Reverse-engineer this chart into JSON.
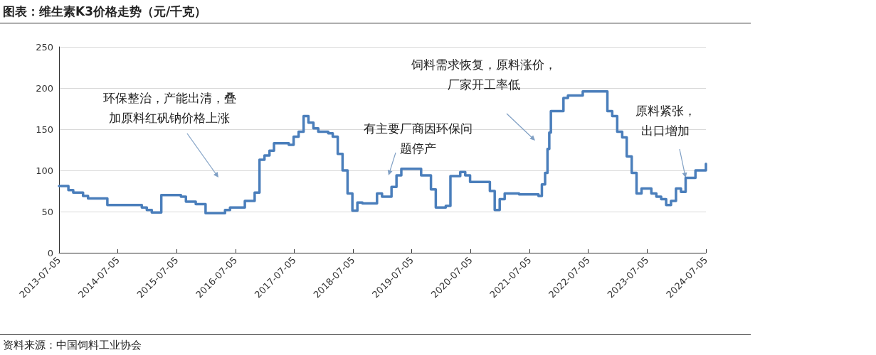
{
  "chart_data": {
    "type": "step",
    "title": "图表：维生素K3价格走势（元/千克）",
    "x": [
      "2013-07-05",
      "2013-09",
      "2013-10",
      "2013-12",
      "2014-01",
      "2014-05",
      "2014-12",
      "2015-01",
      "2015-02",
      "2015-04",
      "2015-08",
      "2015-09",
      "2015-11",
      "2016-01",
      "2016-05",
      "2016-06",
      "2016-09",
      "2016-11",
      "2016-12",
      "2017-01",
      "2017-02",
      "2017-03",
      "2017-06",
      "2017-07",
      "2017-08",
      "2017-09",
      "2017-10",
      "2017-11",
      "2017-12",
      "2018-02",
      "2018-03",
      "2018-04",
      "2018-05",
      "2018-06",
      "2018-07",
      "2018-08",
      "2018-09",
      "2018-11",
      "2018-12",
      "2019-01",
      "2019-03",
      "2019-04",
      "2019-05",
      "2019-08",
      "2019-09",
      "2019-11",
      "2019-12",
      "2020-02",
      "2020-03",
      "2020-05",
      "2020-06",
      "2020-07",
      "2020-10",
      "2020-11",
      "2020-12",
      "2021-01",
      "2021-02",
      "2021-05",
      "2021-08-30",
      "2021-09-20",
      "2021-10-10",
      "2021-10-25",
      "2021-11-05",
      "2021-11-15",
      "2022-02",
      "2022-03",
      "2022-06",
      "2022-11",
      "2022-12",
      "2023-01",
      "2023-02",
      "2023-03",
      "2023-04",
      "2023-05",
      "2023-06",
      "2023-08",
      "2023-09",
      "2023-10",
      "2023-11",
      "2023-12",
      "2024-01",
      "2024-02",
      "2024-03",
      "2024-05",
      "2024-07-05"
    ],
    "series": [
      {
        "color": "#4a7ebb",
        "values": [
          81,
          76,
          73,
          69,
          66,
          58,
          55,
          52,
          49,
          70,
          68,
          62,
          59,
          48,
          52,
          55,
          63,
          73,
          113,
          118,
          124,
          133,
          131,
          141,
          147,
          166,
          158,
          151,
          147,
          145,
          141,
          120,
          100,
          72,
          51,
          61,
          60,
          60,
          72,
          68,
          80,
          94,
          102,
          102,
          94,
          77,
          55,
          57,
          93,
          98,
          94,
          86,
          86,
          75,
          52,
          65,
          72,
          71,
          69,
          83,
          97,
          126,
          146,
          172,
          188,
          191,
          196,
          172,
          166,
          147,
          140,
          117,
          97,
          72,
          78,
          72,
          68,
          65,
          58,
          63,
          78,
          74,
          91,
          100,
          108
        ]
      }
    ],
    "xlim": [
      "2013-07-05",
      "2024-07-05"
    ],
    "xticks": [
      "2013-07-05",
      "2014-07-05",
      "2015-07-05",
      "2016-07-05",
      "2017-07-05",
      "2018-07-05",
      "2019-07-05",
      "2020-07-05",
      "2021-07-05",
      "2022-07-05",
      "2023-07-05",
      "2024-07-05"
    ],
    "ylim": [
      0,
      250
    ],
    "yticks": [
      0,
      50,
      100,
      150,
      200,
      250
    ],
    "grid": "y",
    "marker": "none",
    "line_style": "solid",
    "annotations": [
      "环保整治，产能出清，叠加原料红矾钠价格上涨",
      "有主要厂商因环保问题停产",
      "饲料需求恢复，原料涨价，厂家开工率低",
      {
        "text": "原料紧张，出口增加",
        "x": "2024-03",
        "y": 91
      },
      "资料来源：中国饲料工业协会"
    ]
  }
}
